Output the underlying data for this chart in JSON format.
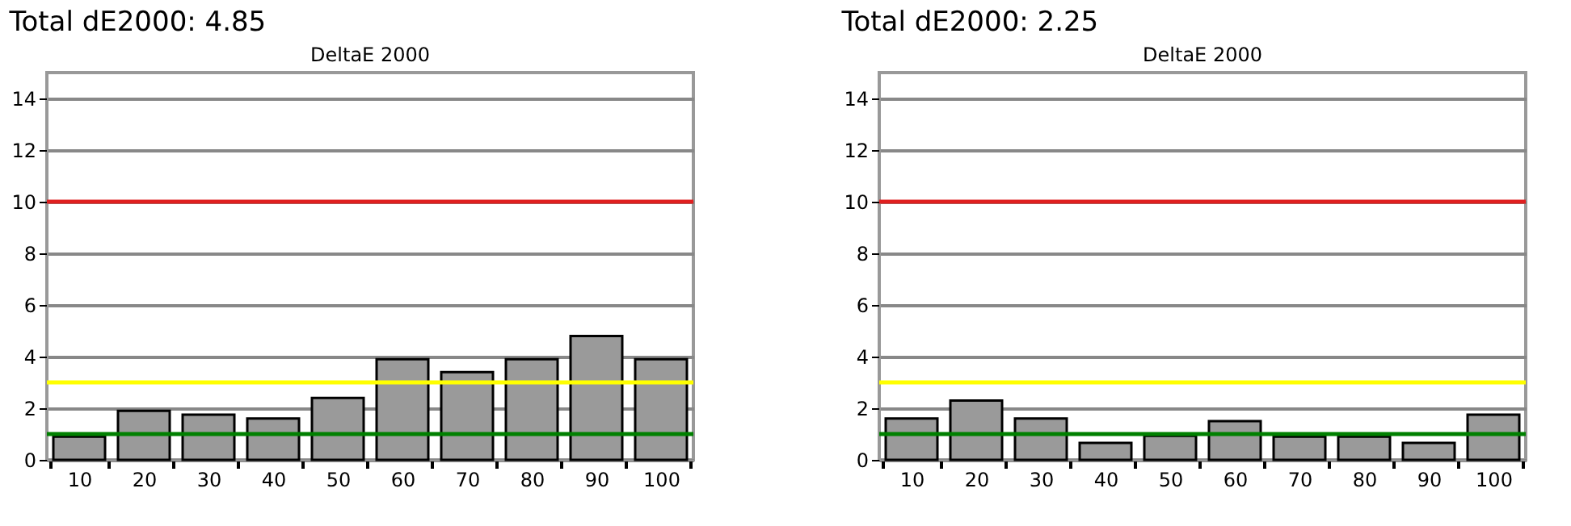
{
  "chart_data": [
    {
      "type": "bar",
      "title": "Total dE2000: 4.85",
      "subtitle": "DeltaE 2000",
      "categories": [
        "10",
        "20",
        "30",
        "40",
        "50",
        "60",
        "70",
        "80",
        "90",
        "100"
      ],
      "values": [
        0.9,
        1.9,
        1.75,
        1.6,
        2.4,
        3.9,
        3.4,
        3.9,
        4.8,
        3.9
      ],
      "color": "#9a9a9a",
      "ylim": [
        0,
        15
      ],
      "yticks": [
        0,
        2,
        4,
        6,
        8,
        10,
        12,
        14
      ],
      "grid": "y",
      "ref_lines": [
        {
          "axis": "y",
          "value": 10,
          "color": "#e02020"
        },
        {
          "axis": "y",
          "value": 3,
          "color": "#ffff00"
        },
        {
          "axis": "y",
          "value": 1,
          "color": "#008000"
        }
      ]
    },
    {
      "type": "bar",
      "title": "Total dE2000: 2.25",
      "subtitle": "DeltaE 2000",
      "categories": [
        "10",
        "20",
        "30",
        "40",
        "50",
        "60",
        "70",
        "80",
        "90",
        "100"
      ],
      "values": [
        1.6,
        2.3,
        1.6,
        0.66,
        0.93,
        1.5,
        0.9,
        0.9,
        0.66,
        1.75
      ],
      "color": "#9a9a9a",
      "ylim": [
        0,
        15
      ],
      "yticks": [
        0,
        2,
        4,
        6,
        8,
        10,
        12,
        14
      ],
      "grid": "y",
      "ref_lines": [
        {
          "axis": "y",
          "value": 10,
          "color": "#e02020"
        },
        {
          "axis": "y",
          "value": 3,
          "color": "#ffff00"
        },
        {
          "axis": "y",
          "value": 1,
          "color": "#008000"
        }
      ]
    }
  ]
}
